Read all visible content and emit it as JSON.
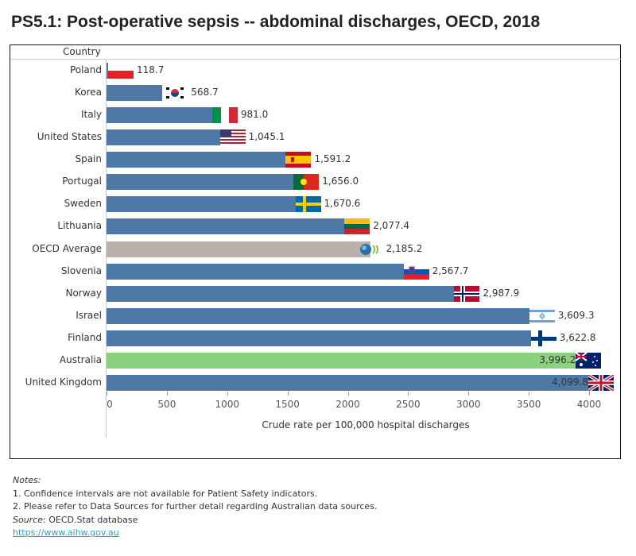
{
  "title": "PS5.1: Post-operative sepsis -- abdominal discharges, OECD, 2018",
  "chart_data": {
    "type": "bar",
    "orientation": "horizontal",
    "column_header": "Country",
    "xlabel": "Crude rate per 100,000 hospital discharges",
    "xlim": [
      0,
      4100
    ],
    "ticks": [
      "0",
      "500",
      "1000",
      "1500",
      "2000",
      "2500",
      "3000",
      "3500",
      "4000"
    ],
    "categories": [
      "Poland",
      "Korea",
      "Italy",
      "United States",
      "Spain",
      "Portugal",
      "Sweden",
      "Lithuania",
      "OECD Average",
      "Slovenia",
      "Norway",
      "Israel",
      "Finland",
      "Australia",
      "United Kingdom"
    ],
    "values": [
      118.7,
      568.7,
      981.0,
      1045.1,
      1591.2,
      1656.0,
      1670.6,
      2077.4,
      2185.2,
      2567.7,
      2987.9,
      3609.3,
      3622.8,
      3996.2,
      4099.8
    ],
    "labels": [
      "118.7",
      "568.7",
      "981.0",
      "1,045.1",
      "1,591.2",
      "1,656.0",
      "1,670.6",
      "2,077.4",
      "2,185.2",
      "2,567.7",
      "2,987.9",
      "3,609.3",
      "3,622.8",
      "3,996.2",
      "4,099.8"
    ],
    "flags": [
      "poland-flag",
      "korea-flag",
      "italy-flag",
      "usa-flag",
      "spain-flag",
      "portugal-flag",
      "sweden-flag",
      "lithuania-flag",
      "oecd-logo",
      "slovenia-flag",
      "norway-flag",
      "israel-flag",
      "finland-flag",
      "australia-flag",
      "uk-flag"
    ],
    "colors": {
      "default": "#4e79a7",
      "OECD Average": "#bab0ac",
      "Australia": "#8cd17d"
    }
  },
  "notes": {
    "heading": "Notes:",
    "items": [
      "1. Confidence intervals are not available for Patient Safety indicators.",
      "2. Please refer to Data Sources for further detail regarding Australian data sources."
    ],
    "source_label": "Source",
    "source_text": ": OECD.Stat database",
    "link": "https://www.aihw.gov.au"
  }
}
